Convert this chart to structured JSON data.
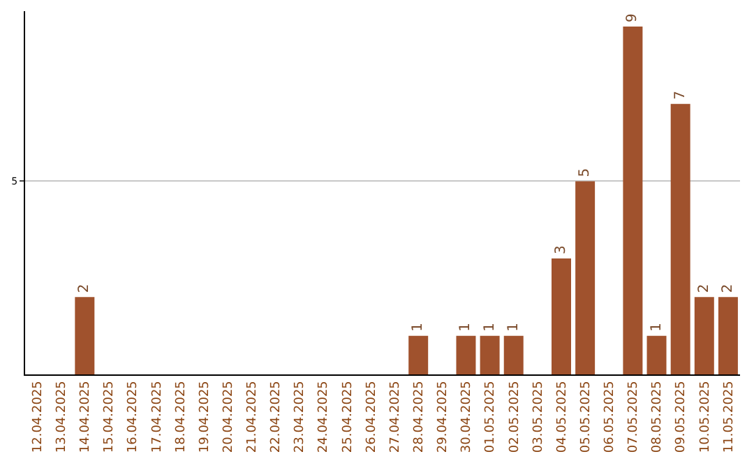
{
  "chart_data": {
    "type": "bar",
    "categories": [
      "12.04.2025",
      "13.04.2025",
      "14.04.2025",
      "15.04.2025",
      "16.04.2025",
      "17.04.2025",
      "18.04.2025",
      "19.04.2025",
      "20.04.2025",
      "21.04.2025",
      "22.04.2025",
      "23.04.2025",
      "24.04.2025",
      "25.04.2025",
      "26.04.2025",
      "27.04.2025",
      "28.04.2025",
      "29.04.2025",
      "30.04.2025",
      "01.05.2025",
      "02.05.2025",
      "03.05.2025",
      "04.05.2025",
      "05.05.2025",
      "06.05.2025",
      "07.05.2025",
      "08.05.2025",
      "09.05.2025",
      "10.05.2025",
      "11.05.2025"
    ],
    "values": [
      0,
      0,
      2,
      0,
      0,
      0,
      0,
      0,
      0,
      0,
      0,
      0,
      0,
      0,
      0,
      0,
      1,
      0,
      1,
      1,
      1,
      0,
      3,
      5,
      0,
      9,
      1,
      7,
      2,
      2
    ],
    "value_labels": [
      null,
      null,
      "2",
      null,
      null,
      null,
      null,
      null,
      null,
      null,
      null,
      null,
      null,
      null,
      null,
      null,
      "1",
      null,
      "1",
      "1",
      "1",
      null,
      "3",
      "5",
      null,
      "9",
      "1",
      "7",
      "2",
      "2"
    ],
    "color": "#a0522d",
    "ylim": [
      0,
      9.4
    ],
    "yticks": [
      5
    ],
    "grid": "y"
  }
}
